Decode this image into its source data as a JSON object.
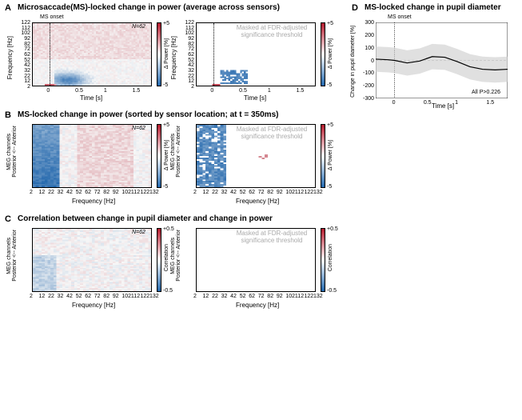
{
  "panelA": {
    "label": "A",
    "title": "Microsaccade(MS)-locked change in power (average across sensors)",
    "left": {
      "ylabel": "Frequency [Hz]",
      "xlabel": "Time [s]",
      "top_label": "MS onset",
      "n_label": "N=62",
      "yticks": [
        "122",
        "112",
        "102",
        "92",
        "82",
        "72",
        "62",
        "52",
        "42",
        "32",
        "22",
        "12",
        "2"
      ],
      "xticks": [
        "0",
        "0.5",
        "1",
        "1.5"
      ],
      "xlim": [
        -0.3,
        1.8
      ],
      "ylim": [
        2,
        132
      ],
      "colors": {
        "low": "#2166ac",
        "mid": "#f7f7f7",
        "high": "#b2182b"
      },
      "colorbar": {
        "label": "Δ Power [%]",
        "min": "-5",
        "max": "+5"
      }
    },
    "right": {
      "ylabel": "Frequency [Hz]",
      "xlabel": "Time [s]",
      "mask_label": "Masked at FDR-adjusted significance threshold",
      "yticks": [
        "122",
        "112",
        "102",
        "92",
        "82",
        "72",
        "62",
        "52",
        "42",
        "32",
        "22",
        "12",
        "2"
      ],
      "xticks": [
        "0",
        "0.5",
        "1",
        "1.5"
      ],
      "colorbar": {
        "label": "Δ Power [%]",
        "min": "-5",
        "max": "+5"
      }
    }
  },
  "panelB": {
    "label": "B",
    "title": "MS-locked change in power (sorted by sensor location; at t = 350ms)",
    "ylabel": "MEG channels\nPosterior <-- Anterior",
    "xlabel": "Frequency [Hz]",
    "n_label": "N=62",
    "mask_label": "Masked at FDR-adjusted significance threshold",
    "xticks": [
      "2",
      "12",
      "22",
      "32",
      "42",
      "52",
      "62",
      "72",
      "82",
      "92",
      "102",
      "112",
      "122",
      "132"
    ],
    "colorbar": {
      "label": "Δ Power [%]",
      "min": "-5",
      "max": "+5"
    },
    "colors": {
      "low": "#2166ac",
      "mid": "#f7f7f7",
      "high": "#b2182b"
    }
  },
  "panelC": {
    "label": "C",
    "title": "Correlation between change in pupil diameter and change in power",
    "ylabel": "MEG channels\nPosterior <-- Anterior",
    "xlabel": "Frequency [Hz]",
    "n_label": "N=62",
    "mask_label": "Masked at FDR-adjusted significance threshold",
    "xticks": [
      "2",
      "12",
      "22",
      "32",
      "42",
      "52",
      "62",
      "72",
      "82",
      "92",
      "102",
      "112",
      "122",
      "132"
    ],
    "colorbar": {
      "label": "Correlation",
      "min": "-0.5",
      "max": "+0.5"
    },
    "colors": {
      "low": "#2166ac",
      "mid": "#f7f7f7",
      "high": "#b2182b"
    }
  },
  "panelD": {
    "label": "D",
    "title": "MS-locked change in pupil diameter",
    "ylabel": "Change in pupil diameter [%]",
    "xlabel": "Time [s]",
    "top_label": "MS onset",
    "p_label": "All P>0.226",
    "yticks": [
      "-300",
      "-200",
      "-100",
      "0",
      "100",
      "200",
      "300"
    ],
    "xticks": [
      "0",
      "0.5",
      "1",
      "1.5"
    ],
    "xlim": [
      -0.3,
      1.8
    ],
    "ylim": [
      -300,
      300
    ],
    "line_color": "#000000",
    "shade_color": "#cccccc",
    "line_points": [
      [
        -0.3,
        10
      ],
      [
        -0.1,
        5
      ],
      [
        0,
        0
      ],
      [
        0.2,
        -20
      ],
      [
        0.4,
        -5
      ],
      [
        0.6,
        30
      ],
      [
        0.8,
        25
      ],
      [
        1.0,
        -10
      ],
      [
        1.2,
        -50
      ],
      [
        1.4,
        -70
      ],
      [
        1.6,
        -75
      ],
      [
        1.8,
        -70
      ]
    ],
    "shade_width": 100
  }
}
